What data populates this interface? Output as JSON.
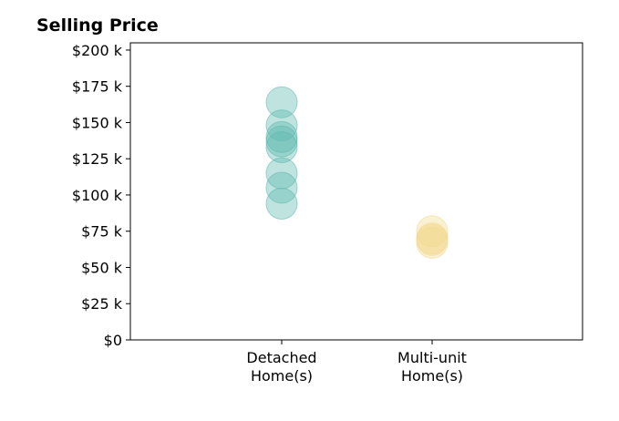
{
  "chart_data": {
    "type": "scatter",
    "title": "Selling Price",
    "xlabel": "",
    "ylabel": "",
    "categories": [
      [
        "Detached",
        "Home(s)"
      ],
      [
        "Multi-unit",
        "Home(s)"
      ]
    ],
    "ylim": [
      0,
      205000
    ],
    "yticks": [
      {
        "value": 0,
        "label": "$0"
      },
      {
        "value": 25000,
        "label": "$25 k"
      },
      {
        "value": 50000,
        "label": "$50 k"
      },
      {
        "value": 75000,
        "label": "$75 k"
      },
      {
        "value": 100000,
        "label": "$100 k"
      },
      {
        "value": 125000,
        "label": "$125 k"
      },
      {
        "value": 150000,
        "label": "$150 k"
      },
      {
        "value": 175000,
        "label": "$175 k"
      },
      {
        "value": 200000,
        "label": "$200 k"
      }
    ],
    "grid": false,
    "series": [
      {
        "category_index": 0,
        "color": "#5fb8ae",
        "values": [
          164000,
          148000,
          140000,
          137000,
          133000,
          115000,
          105000,
          94000
        ]
      },
      {
        "category_index": 1,
        "color": "#f3d98e",
        "values": [
          75000,
          70000,
          69000,
          67000
        ]
      }
    ]
  }
}
